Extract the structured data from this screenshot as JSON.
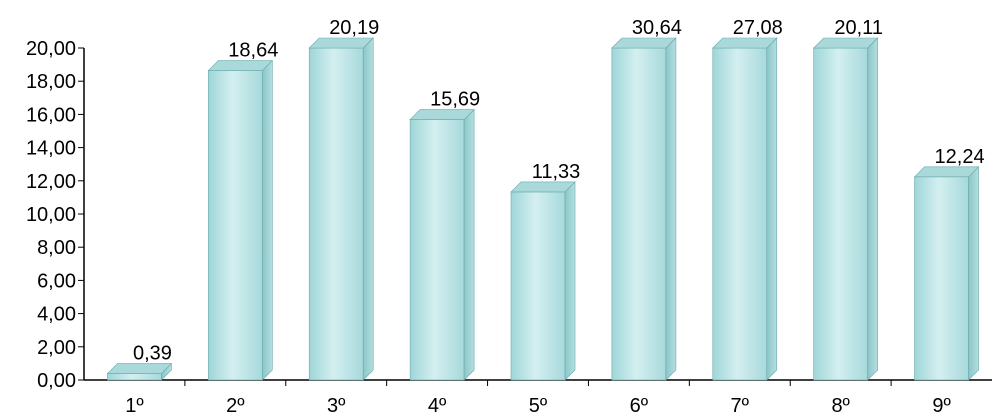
{
  "chart_data": {
    "type": "bar",
    "categories": [
      "1º",
      "2º",
      "3º",
      "4º",
      "5º",
      "6º",
      "7º",
      "8º",
      "9º"
    ],
    "values": [
      0.39,
      18.64,
      20.19,
      15.69,
      11.33,
      30.64,
      27.08,
      20.11,
      12.24
    ],
    "data_labels": [
      "0,39",
      "18,64",
      "20,19",
      "15,69",
      "11,33",
      "30,64",
      "27,08",
      "20,11",
      "12,24"
    ],
    "y_ticks": [
      "0,00",
      "2,00",
      "4,00",
      "6,00",
      "8,00",
      "10,00",
      "12,00",
      "14,00",
      "16,00",
      "18,00",
      "20,00"
    ],
    "ylim": [
      0,
      20
    ],
    "title": "",
    "xlabel": "",
    "ylabel": "",
    "grid": false,
    "legend": "none",
    "bar_style": "3d-column",
    "colors": {
      "bar_front": "#bfe7e8",
      "bar_front_dark": "#8fcfd1",
      "bar_side": "#86c3c5",
      "bar_top": "#a9d9da",
      "bar_edge": "#6aa9ab",
      "axis": "#000000"
    }
  }
}
